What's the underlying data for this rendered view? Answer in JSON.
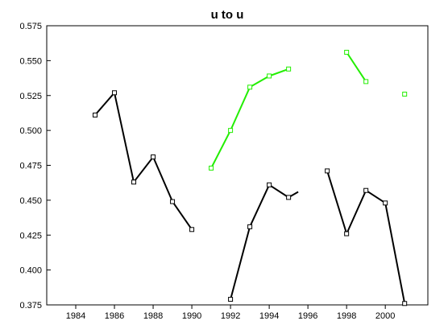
{
  "chart_data": {
    "type": "line",
    "title": "u to u",
    "xlabel": "",
    "ylabel": "",
    "xlim": [
      1982.5,
      2002.2
    ],
    "ylim": [
      0.375,
      0.575
    ],
    "x_ticks": [
      1984,
      1986,
      1988,
      1990,
      1992,
      1994,
      1996,
      1998,
      2000
    ],
    "x_tick_labels": [
      "1984",
      "1986",
      "1988",
      "1990",
      "1992",
      "1994",
      "1996",
      "1998",
      "2000"
    ],
    "y_ticks": [
      0.375,
      0.4,
      0.425,
      0.45,
      0.475,
      0.5,
      0.525,
      0.55,
      0.575
    ],
    "y_tick_labels": [
      "0.375",
      "0.400",
      "0.425",
      "0.450",
      "0.475",
      "0.500",
      "0.525",
      "0.550",
      "0.575"
    ],
    "grid": false,
    "legend": "none",
    "series": [
      {
        "color": "#000000",
        "segments": [
          {
            "x": [
              1985,
              1986,
              1987,
              1988,
              1989,
              1990
            ],
            "y": [
              0.511,
              0.527,
              0.463,
              0.481,
              0.449,
              0.429
            ],
            "markers": true
          },
          {
            "x": [
              1992,
              1993,
              1994,
              1995,
              1995.5
            ],
            "y": [
              0.379,
              0.431,
              0.461,
              0.452,
              0.456
            ],
            "markers": [
              true,
              true,
              true,
              true,
              false
            ]
          },
          {
            "x": [
              1997,
              1998,
              1999,
              2000,
              2001
            ],
            "y": [
              0.471,
              0.426,
              0.457,
              0.448,
              0.376
            ],
            "markers": true
          }
        ]
      },
      {
        "color": "#22ee00",
        "segments": [
          {
            "x": [
              1991,
              1992,
              1993,
              1994,
              1995
            ],
            "y": [
              0.473,
              0.5,
              0.531,
              0.539,
              0.544
            ],
            "markers": true
          },
          {
            "x": [
              1998,
              1999
            ],
            "y": [
              0.556,
              0.535
            ],
            "markers": true
          },
          {
            "x": [
              2001
            ],
            "y": [
              0.526
            ],
            "markers": true
          }
        ]
      }
    ]
  }
}
